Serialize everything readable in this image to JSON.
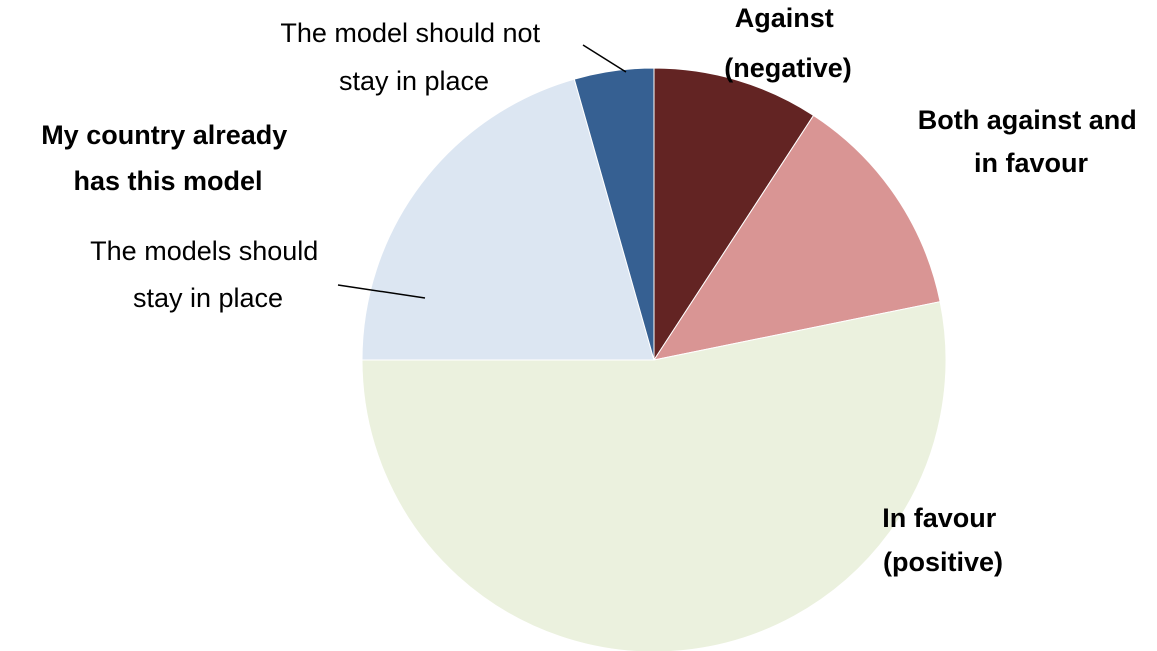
{
  "chart_data": {
    "type": "pie",
    "start_angle_deg": 0,
    "direction": "clockwise",
    "slices": [
      {
        "label": "Against (negative)",
        "label_lines": [
          "Against",
          "(negative)"
        ],
        "value": 9.2,
        "color": "#632423",
        "bold": true
      },
      {
        "label": "Both against and in favour",
        "label_lines": [
          "Both against and",
          "in favour"
        ],
        "value": 12.6,
        "color": "#d99594",
        "bold": true
      },
      {
        "label": "In favour (positive)",
        "label_lines": [
          "In favour",
          "(positive)"
        ],
        "value": 53.2,
        "color": "#ebf1de",
        "bold": true
      },
      {
        "label": "The models should stay in place",
        "label_lines": [
          "The models should",
          "stay in place"
        ],
        "value": 20.6,
        "color": "#dce6f2",
        "bold": false
      },
      {
        "label": "The model should not stay in place",
        "label_lines": [
          "The model should not",
          "stay in place"
        ],
        "value": 4.4,
        "color": "#366092",
        "bold": false
      }
    ],
    "group_labels": [
      {
        "lines": [
          "My country already",
          "has this model"
        ],
        "bold": true
      }
    ]
  }
}
